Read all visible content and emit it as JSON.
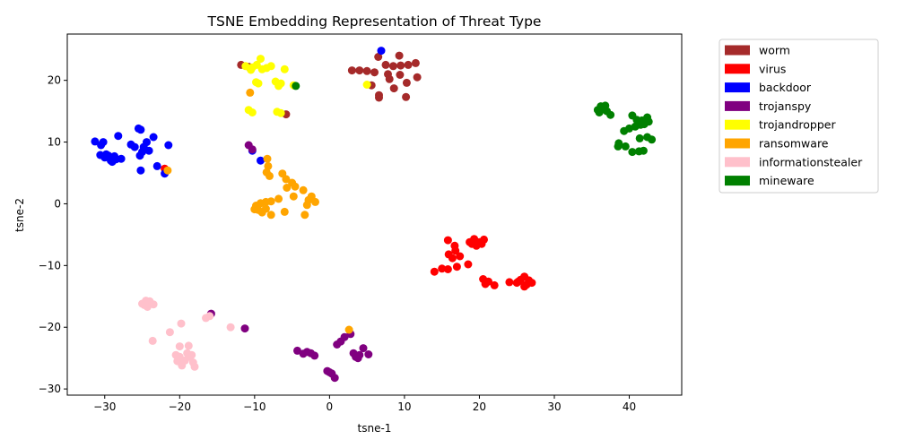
{
  "chart_data": {
    "type": "scatter",
    "title": "TSNE Embedding Representation of Threat Type",
    "xlabel": "tsne-1",
    "ylabel": "tsne-2",
    "xlim": [
      -35,
      47
    ],
    "ylim": [
      -31,
      27.5
    ],
    "xticks": [
      -30,
      -20,
      -10,
      0,
      10,
      20,
      30,
      40
    ],
    "yticks": [
      -30,
      -20,
      -10,
      0,
      10,
      20
    ],
    "xtick_labels": [
      "−30",
      "−20",
      "−10",
      "0",
      "10",
      "20",
      "30",
      "40"
    ],
    "ytick_labels": [
      "−30",
      "−20",
      "−10",
      "0",
      "10",
      "20"
    ],
    "grid": false,
    "legend_position": "outside-right",
    "series": [
      {
        "name": "worm",
        "color": "#a52a2a",
        "points": [
          [
            -11.8,
            22.5
          ],
          [
            -10.8,
            22.2
          ],
          [
            3,
            21.6
          ],
          [
            4,
            21.6
          ],
          [
            5,
            21.5
          ],
          [
            6.5,
            23.8
          ],
          [
            7.5,
            22.5
          ],
          [
            8.5,
            22.3
          ],
          [
            9.5,
            22.4
          ],
          [
            10.5,
            22.5
          ],
          [
            11.5,
            22.8
          ],
          [
            11.7,
            20.5
          ],
          [
            9.3,
            24
          ],
          [
            6,
            21.3
          ],
          [
            7.8,
            21
          ],
          [
            8,
            20.2
          ],
          [
            9.4,
            20.9
          ],
          [
            10.3,
            19.6
          ],
          [
            8.6,
            18.7
          ],
          [
            6.6,
            17.6
          ],
          [
            6.6,
            17.2
          ],
          [
            10.2,
            17.3
          ],
          [
            5.6,
            19.2
          ],
          [
            -5.8,
            14.5
          ]
        ]
      },
      {
        "name": "virus",
        "color": "#ff0000",
        "points": [
          [
            -22,
            5.7
          ],
          [
            14,
            -11
          ],
          [
            15,
            -10.5
          ],
          [
            15.8,
            -10.6
          ],
          [
            15.8,
            -5.9
          ],
          [
            15.9,
            -8.2
          ],
          [
            16.4,
            -8.8
          ],
          [
            16.7,
            -6.8
          ],
          [
            16.8,
            -7.6
          ],
          [
            17,
            -10.2
          ],
          [
            17.4,
            -8.5
          ],
          [
            18.5,
            -9.8
          ],
          [
            18.7,
            -6.2
          ],
          [
            19,
            -6.5
          ],
          [
            19.3,
            -5.7
          ],
          [
            19.6,
            -6.8
          ],
          [
            20,
            -6.2
          ],
          [
            20.3,
            -6.5
          ],
          [
            20.6,
            -5.8
          ],
          [
            20.5,
            -12.2
          ],
          [
            20.8,
            -13
          ],
          [
            21.2,
            -12.6
          ],
          [
            22,
            -13.2
          ],
          [
            24,
            -12.7
          ],
          [
            25,
            -12.8
          ],
          [
            25.5,
            -12.3
          ],
          [
            26,
            -11.8
          ],
          [
            26.3,
            -13.1
          ],
          [
            26.6,
            -12.4
          ],
          [
            27,
            -12.8
          ],
          [
            26,
            -13.4
          ],
          [
            25.2,
            -12.6
          ]
        ]
      },
      {
        "name": "backdoor",
        "color": "#0000ff",
        "points": [
          [
            -31.3,
            10.1
          ],
          [
            -30.5,
            9.5
          ],
          [
            -30.2,
            10
          ],
          [
            -30,
            7.5
          ],
          [
            -29.8,
            8
          ],
          [
            -29.5,
            7.8
          ],
          [
            -29.2,
            7
          ],
          [
            -29,
            6.8
          ],
          [
            -28.5,
            7.2
          ],
          [
            -28.7,
            7.7
          ],
          [
            -30.6,
            7.9
          ],
          [
            -27.8,
            7.3
          ],
          [
            -28.2,
            11
          ],
          [
            -26.5,
            9.6
          ],
          [
            -26,
            9.2
          ],
          [
            -25.5,
            12.2
          ],
          [
            -25.2,
            12
          ],
          [
            -25,
            8.4
          ],
          [
            -25.3,
            7.8
          ],
          [
            -24.8,
            9.2
          ],
          [
            -24.4,
            10
          ],
          [
            -24.1,
            8.6
          ],
          [
            -23.5,
            10.8
          ],
          [
            -25.2,
            5.4
          ],
          [
            -23.0,
            6.1
          ],
          [
            -21.5,
            9.5
          ],
          [
            -22,
            4.9
          ],
          [
            6.9,
            24.8
          ],
          [
            -9.2,
            7
          ],
          [
            -10.3,
            8.6
          ]
        ]
      },
      {
        "name": "trojanspy",
        "color": "#800080",
        "points": [
          [
            -10.8,
            9.5
          ],
          [
            -10.3,
            8.8
          ],
          [
            -11.3,
            -20.2
          ],
          [
            -15.8,
            -17.8
          ],
          [
            -4.3,
            -23.8
          ],
          [
            -3.5,
            -24.3
          ],
          [
            -3,
            -24
          ],
          [
            -2.5,
            -24.2
          ],
          [
            -2,
            -24.6
          ],
          [
            -0.3,
            -27.1
          ],
          [
            0,
            -27.3
          ],
          [
            0.3,
            -27.5
          ],
          [
            0.7,
            -28.2
          ],
          [
            1,
            -22.8
          ],
          [
            1.5,
            -22.3
          ],
          [
            2,
            -21.6
          ],
          [
            2.8,
            -21.1
          ],
          [
            3.2,
            -24.2
          ],
          [
            3.5,
            -24.8
          ],
          [
            4,
            -24.5
          ],
          [
            4.5,
            -23.4
          ],
          [
            5.2,
            -24.4
          ],
          [
            3.8,
            -25
          ]
        ]
      },
      {
        "name": "trojandropper",
        "color": "#ffff00",
        "points": [
          [
            -11.2,
            22.3
          ],
          [
            -10.5,
            21.7
          ],
          [
            -10.3,
            22.1
          ],
          [
            -9.7,
            22.5
          ],
          [
            -9.2,
            23.5
          ],
          [
            -9,
            21.8
          ],
          [
            -8.4,
            22
          ],
          [
            -7.8,
            22.3
          ],
          [
            -9.8,
            19.7
          ],
          [
            -9.5,
            19.5
          ],
          [
            -6.5,
            19.5
          ],
          [
            -7.2,
            19.8
          ],
          [
            -6,
            21.8
          ],
          [
            -10.8,
            15.2
          ],
          [
            -10.3,
            14.8
          ],
          [
            -7,
            14.9
          ],
          [
            -6.5,
            14.7
          ],
          [
            -4.8,
            19.2
          ],
          [
            -6.8,
            19.1
          ],
          [
            5,
            19.3
          ]
        ]
      },
      {
        "name": "ransomware",
        "color": "#ffa500",
        "points": [
          [
            -10.6,
            18
          ],
          [
            -21.6,
            5.4
          ],
          [
            -8.3,
            7.3
          ],
          [
            -8.2,
            6.1
          ],
          [
            -8.4,
            5.1
          ],
          [
            -8,
            4.5
          ],
          [
            -6.3,
            4.9
          ],
          [
            -5.8,
            4
          ],
          [
            -5,
            3.4
          ],
          [
            -4.6,
            2.8
          ],
          [
            -5.7,
            2.6
          ],
          [
            -3.5,
            2.2
          ],
          [
            -4.8,
            1.2
          ],
          [
            -2.4,
            1.2
          ],
          [
            -2.8,
            0.6
          ],
          [
            -1.9,
            0.3
          ],
          [
            -3,
            -0.2
          ],
          [
            -6.8,
            0.8
          ],
          [
            -7.8,
            0.4
          ],
          [
            -8.5,
            0.3
          ],
          [
            -9.2,
            0.1
          ],
          [
            -9.8,
            -0.3
          ],
          [
            -10,
            -0.9
          ],
          [
            -9,
            -1.4
          ],
          [
            -8.5,
            -0.8
          ],
          [
            -7.8,
            -1.8
          ],
          [
            -6,
            -1.3
          ],
          [
            -3.3,
            -1.8
          ],
          [
            2.6,
            -20.4
          ],
          [
            -9.5,
            -1
          ]
        ]
      },
      {
        "name": "informationstealer",
        "color": "#ffc0cb",
        "points": [
          [
            -25,
            -16.2
          ],
          [
            -24.5,
            -15.7
          ],
          [
            -24,
            -15.8
          ],
          [
            -23.5,
            -16.3
          ],
          [
            -24.3,
            -16.7
          ],
          [
            -24.7,
            -16.4
          ],
          [
            -23.6,
            -22.2
          ],
          [
            -21.3,
            -20.8
          ],
          [
            -19.8,
            -19.4
          ],
          [
            -16.5,
            -18.5
          ],
          [
            -16,
            -18.2
          ],
          [
            -13.2,
            -20
          ],
          [
            -20.5,
            -24.5
          ],
          [
            -20.3,
            -25.5
          ],
          [
            -20,
            -24.8
          ],
          [
            -19.7,
            -26.2
          ],
          [
            -19.3,
            -25.4
          ],
          [
            -18.8,
            -24.8
          ],
          [
            -18.4,
            -24.5
          ],
          [
            -18,
            -26.4
          ],
          [
            -18.2,
            -25.7
          ],
          [
            -20,
            -23.1
          ],
          [
            -18.8,
            -23
          ],
          [
            -19,
            -24.2
          ]
        ]
      },
      {
        "name": "mineware",
        "color": "#008000",
        "points": [
          [
            -4.5,
            19.1
          ],
          [
            35.8,
            15.2
          ],
          [
            36.2,
            15.8
          ],
          [
            36.5,
            15.4
          ],
          [
            36.8,
            15.9
          ],
          [
            37,
            15
          ],
          [
            36,
            14.8
          ],
          [
            37.5,
            14.4
          ],
          [
            36.5,
            15.5
          ],
          [
            40.4,
            14.3
          ],
          [
            41,
            13.6
          ],
          [
            41.7,
            13.5
          ],
          [
            42,
            12.9
          ],
          [
            42.4,
            14
          ],
          [
            42.6,
            13.3
          ],
          [
            41.5,
            12.8
          ],
          [
            40.8,
            12.5
          ],
          [
            40,
            12.2
          ],
          [
            39.3,
            11.8
          ],
          [
            41.4,
            10.6
          ],
          [
            42.4,
            10.8
          ],
          [
            43,
            10.4
          ],
          [
            38.6,
            9.8
          ],
          [
            39.5,
            9.3
          ],
          [
            38.5,
            9.3
          ],
          [
            40.4,
            8.4
          ],
          [
            41.3,
            8.5
          ],
          [
            41.9,
            8.6
          ]
        ]
      }
    ]
  }
}
